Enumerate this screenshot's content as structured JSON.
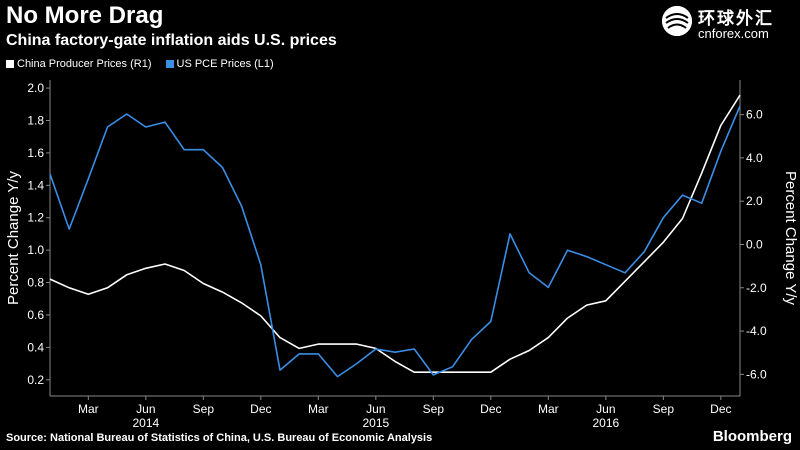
{
  "header": {
    "title": "No More Drag",
    "subtitle": "China factory-gate inflation aids U.S. prices"
  },
  "watermark": {
    "name": "环球外汇",
    "url": "cnforex.com"
  },
  "footer": {
    "source": "Source: National Bureau of Statistics of China, U.S. Bureau of Economic Analysis",
    "brand": "Bloomberg"
  },
  "colors": {
    "background": "#000000",
    "china_series": "#ffffff",
    "us_series": "#3a8ee6"
  },
  "chart_data": {
    "type": "line",
    "xlabel": "",
    "ylabel_left": "Percent Change Y/y",
    "ylabel_right": "Percent Change Y/y",
    "ylim_left": [
      0.1,
      2.05
    ],
    "ylim_right": [
      -7.0,
      7.6
    ],
    "yticks_left": [
      "0.2",
      "0.4",
      "0.6",
      "0.8",
      "1.0",
      "1.2",
      "1.4",
      "1.6",
      "1.8",
      "2.0"
    ],
    "yticks_right": [
      "-6.0",
      "-4.0",
      "-2.0",
      "0.0",
      "2.0",
      "4.0",
      "6.0"
    ],
    "x_start": "2014-01",
    "x_end": "2017-01",
    "xticks": [
      {
        "date": "2014-03",
        "label": "Mar"
      },
      {
        "date": "2014-06",
        "label": "Jun"
      },
      {
        "date": "2014-09",
        "label": "Sep"
      },
      {
        "date": "2014-12",
        "label": "Dec"
      },
      {
        "date": "2015-03",
        "label": "Mar"
      },
      {
        "date": "2015-06",
        "label": "Jun"
      },
      {
        "date": "2015-09",
        "label": "Sep"
      },
      {
        "date": "2015-12",
        "label": "Dec"
      },
      {
        "date": "2016-03",
        "label": "Mar"
      },
      {
        "date": "2016-06",
        "label": "Jun"
      },
      {
        "date": "2016-09",
        "label": "Sep"
      },
      {
        "date": "2016-12",
        "label": "Dec"
      }
    ],
    "year_labels": [
      {
        "date": "2014-06",
        "label": "2014"
      },
      {
        "date": "2015-06",
        "label": "2015"
      },
      {
        "date": "2016-06",
        "label": "2016"
      }
    ],
    "x": [
      "2014-01",
      "2014-02",
      "2014-03",
      "2014-04",
      "2014-05",
      "2014-06",
      "2014-07",
      "2014-08",
      "2014-09",
      "2014-10",
      "2014-11",
      "2014-12",
      "2015-01",
      "2015-02",
      "2015-03",
      "2015-04",
      "2015-05",
      "2015-06",
      "2015-07",
      "2015-08",
      "2015-09",
      "2015-10",
      "2015-11",
      "2015-12",
      "2016-01",
      "2016-02",
      "2016-03",
      "2016-04",
      "2016-05",
      "2016-06",
      "2016-07",
      "2016-08",
      "2016-09",
      "2016-10",
      "2016-11",
      "2016-12",
      "2017-01"
    ],
    "series": [
      {
        "name": "China Producer Prices (R1)",
        "axis": "right",
        "values": [
          -1.6,
          -2.0,
          -2.3,
          -2.0,
          -1.4,
          -1.1,
          -0.9,
          -1.2,
          -1.8,
          -2.2,
          -2.7,
          -3.3,
          -4.3,
          -4.8,
          -4.6,
          -4.6,
          -4.6,
          -4.8,
          -5.4,
          -5.9,
          -5.9,
          -5.9,
          -5.9,
          -5.9,
          -5.3,
          -4.9,
          -4.3,
          -3.4,
          -2.8,
          -2.6,
          -1.7,
          -0.8,
          0.1,
          1.2,
          3.3,
          5.5,
          6.9
        ]
      },
      {
        "name": "US PCE Prices (L1)",
        "axis": "left",
        "values": [
          1.47,
          1.13,
          1.44,
          1.76,
          1.84,
          1.76,
          1.79,
          1.62,
          1.62,
          1.51,
          1.27,
          0.91,
          0.26,
          0.36,
          0.36,
          0.22,
          0.3,
          0.39,
          0.37,
          0.39,
          0.23,
          0.28,
          0.45,
          0.56,
          1.1,
          0.86,
          0.77,
          1.0,
          0.96,
          0.91,
          0.86,
          0.99,
          1.2,
          1.34,
          1.29,
          1.61,
          1.89
        ]
      }
    ]
  }
}
